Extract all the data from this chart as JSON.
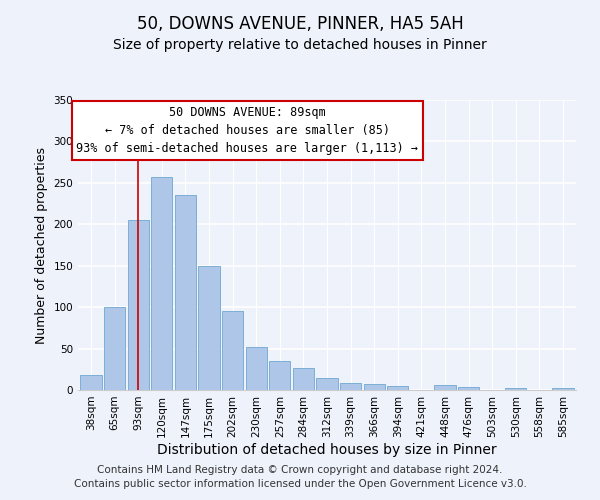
{
  "title": "50, DOWNS AVENUE, PINNER, HA5 5AH",
  "subtitle": "Size of property relative to detached houses in Pinner",
  "xlabel": "Distribution of detached houses by size in Pinner",
  "ylabel": "Number of detached properties",
  "categories": [
    "38sqm",
    "65sqm",
    "93sqm",
    "120sqm",
    "147sqm",
    "175sqm",
    "202sqm",
    "230sqm",
    "257sqm",
    "284sqm",
    "312sqm",
    "339sqm",
    "366sqm",
    "394sqm",
    "421sqm",
    "448sqm",
    "476sqm",
    "503sqm",
    "530sqm",
    "558sqm",
    "585sqm"
  ],
  "values": [
    18,
    100,
    205,
    257,
    235,
    150,
    95,
    52,
    35,
    26,
    15,
    9,
    7,
    5,
    0,
    6,
    4,
    0,
    3,
    0,
    3
  ],
  "bar_color": "#aec6e8",
  "bar_edge_color": "#7bafd4",
  "vline_x_index": 2,
  "vline_color": "#cc0000",
  "ylim": [
    0,
    350
  ],
  "yticks": [
    0,
    50,
    100,
    150,
    200,
    250,
    300,
    350
  ],
  "annotation_title": "50 DOWNS AVENUE: 89sqm",
  "annotation_line1": "← 7% of detached houses are smaller (85)",
  "annotation_line2": "93% of semi-detached houses are larger (1,113) →",
  "annotation_box_color": "#ffffff",
  "annotation_box_edge": "#cc0000",
  "footer1": "Contains HM Land Registry data © Crown copyright and database right 2024.",
  "footer2": "Contains public sector information licensed under the Open Government Licence v3.0.",
  "background_color": "#eef2fb",
  "plot_background": "#eef2fb",
  "grid_color": "#ffffff",
  "title_fontsize": 12,
  "subtitle_fontsize": 10,
  "xlabel_fontsize": 10,
  "ylabel_fontsize": 9,
  "tick_fontsize": 7.5,
  "footer_fontsize": 7.5,
  "ann_fontsize": 8.5
}
